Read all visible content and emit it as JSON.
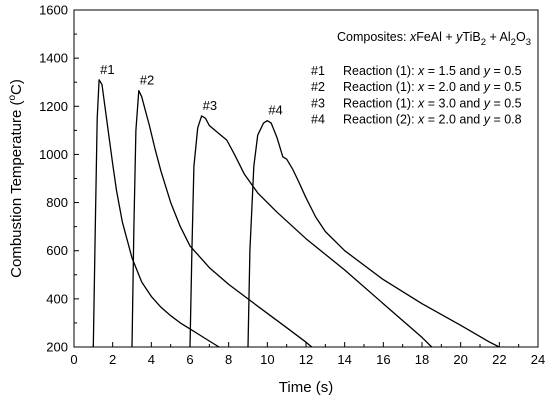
{
  "chart_data": {
    "type": "line",
    "title": "",
    "xlabel": "Time (s)",
    "ylabel_parts": [
      "Combustion Temperature (",
      "o",
      "C)"
    ],
    "xlim": [
      0,
      24
    ],
    "ylim": [
      200,
      1600
    ],
    "xticks": [
      0,
      2,
      4,
      6,
      8,
      10,
      12,
      14,
      16,
      18,
      20,
      22,
      24
    ],
    "yticks": [
      200,
      400,
      600,
      800,
      1000,
      1200,
      1400,
      1600
    ],
    "grid": false,
    "legend_placement": "top-right",
    "annotation_title": [
      {
        "t": "Composites: ",
        "i": false,
        "s": false
      },
      {
        "t": "x",
        "i": true,
        "s": false
      },
      {
        "t": "FeAl + ",
        "i": false,
        "s": false
      },
      {
        "t": "y",
        "i": true,
        "s": false
      },
      {
        "t": "TiB",
        "i": false,
        "s": false
      },
      {
        "t": "2",
        "i": false,
        "s": true
      },
      {
        "t": " + Al",
        "i": false,
        "s": false
      },
      {
        "t": "2",
        "i": false,
        "s": true
      },
      {
        "t": "O",
        "i": false,
        "s": false
      },
      {
        "t": "3",
        "i": false,
        "s": true
      }
    ],
    "series": [
      {
        "name": "#1",
        "description": [
          {
            "t": "Reaction (1): ",
            "i": false
          },
          {
            "t": "x",
            "i": true
          },
          {
            "t": " = 1.5 and ",
            "i": false
          },
          {
            "t": "y",
            "i": true
          },
          {
            "t": " = 0.5",
            "i": false
          }
        ],
        "points": [
          [
            1.0,
            200
          ],
          [
            1.1,
            700
          ],
          [
            1.2,
            1150
          ],
          [
            1.3,
            1310
          ],
          [
            1.45,
            1290
          ],
          [
            1.6,
            1200
          ],
          [
            1.8,
            1080
          ],
          [
            2.0,
            960
          ],
          [
            2.2,
            850
          ],
          [
            2.5,
            720
          ],
          [
            3.0,
            570
          ],
          [
            3.5,
            470
          ],
          [
            4.0,
            410
          ],
          [
            4.5,
            365
          ],
          [
            5.0,
            330
          ],
          [
            5.5,
            300
          ],
          [
            6.0,
            275
          ],
          [
            6.5,
            250
          ],
          [
            7.0,
            225
          ],
          [
            7.5,
            200
          ]
        ]
      },
      {
        "name": "#2",
        "description": [
          {
            "t": "Reaction (1): ",
            "i": false
          },
          {
            "t": "x",
            "i": true
          },
          {
            "t": " = 2.0 and ",
            "i": false
          },
          {
            "t": "y",
            "i": true
          },
          {
            "t": " = 0.5",
            "i": false
          }
        ],
        "points": [
          [
            3.0,
            200
          ],
          [
            3.1,
            700
          ],
          [
            3.2,
            1100
          ],
          [
            3.35,
            1265
          ],
          [
            3.5,
            1240
          ],
          [
            3.7,
            1180
          ],
          [
            3.9,
            1120
          ],
          [
            4.2,
            1020
          ],
          [
            4.5,
            930
          ],
          [
            5.0,
            800
          ],
          [
            5.5,
            700
          ],
          [
            6.0,
            620
          ],
          [
            7.0,
            530
          ],
          [
            8.0,
            460
          ],
          [
            9.0,
            400
          ],
          [
            10.0,
            340
          ],
          [
            11.0,
            280
          ],
          [
            12.0,
            220
          ],
          [
            12.3,
            200
          ]
        ]
      },
      {
        "name": "#3",
        "description": [
          {
            "t": "Reaction (1): ",
            "i": false
          },
          {
            "t": "x",
            "i": true
          },
          {
            "t": " = 3.0 and ",
            "i": false
          },
          {
            "t": "y",
            "i": true
          },
          {
            "t": " = 0.5",
            "i": false
          }
        ],
        "points": [
          [
            6.0,
            200
          ],
          [
            6.1,
            600
          ],
          [
            6.2,
            950
          ],
          [
            6.4,
            1110
          ],
          [
            6.6,
            1160
          ],
          [
            6.8,
            1150
          ],
          [
            7.0,
            1120
          ],
          [
            7.3,
            1100
          ],
          [
            7.6,
            1080
          ],
          [
            7.9,
            1060
          ],
          [
            8.3,
            1000
          ],
          [
            8.8,
            920
          ],
          [
            9.5,
            840
          ],
          [
            10.5,
            760
          ],
          [
            12.0,
            650
          ],
          [
            14.0,
            520
          ],
          [
            16.0,
            380
          ],
          [
            18.0,
            240
          ],
          [
            18.5,
            200
          ]
        ]
      },
      {
        "name": "#4",
        "description": [
          {
            "t": "Reaction (2): ",
            "i": false
          },
          {
            "t": "x",
            "i": true
          },
          {
            "t": " = 2.0 and ",
            "i": false
          },
          {
            "t": "y",
            "i": true
          },
          {
            "t": " = 0.8",
            "i": false
          }
        ],
        "points": [
          [
            9.0,
            200
          ],
          [
            9.1,
            600
          ],
          [
            9.3,
            950
          ],
          [
            9.5,
            1080
          ],
          [
            9.8,
            1130
          ],
          [
            10.0,
            1140
          ],
          [
            10.2,
            1130
          ],
          [
            10.5,
            1070
          ],
          [
            10.8,
            990
          ],
          [
            11.0,
            980
          ],
          [
            11.3,
            940
          ],
          [
            11.6,
            890
          ],
          [
            12.0,
            820
          ],
          [
            12.5,
            740
          ],
          [
            13.0,
            680
          ],
          [
            14.0,
            600
          ],
          [
            16.0,
            480
          ],
          [
            18.0,
            380
          ],
          [
            20.0,
            290
          ],
          [
            21.5,
            220
          ],
          [
            22.0,
            200
          ]
        ]
      }
    ]
  }
}
